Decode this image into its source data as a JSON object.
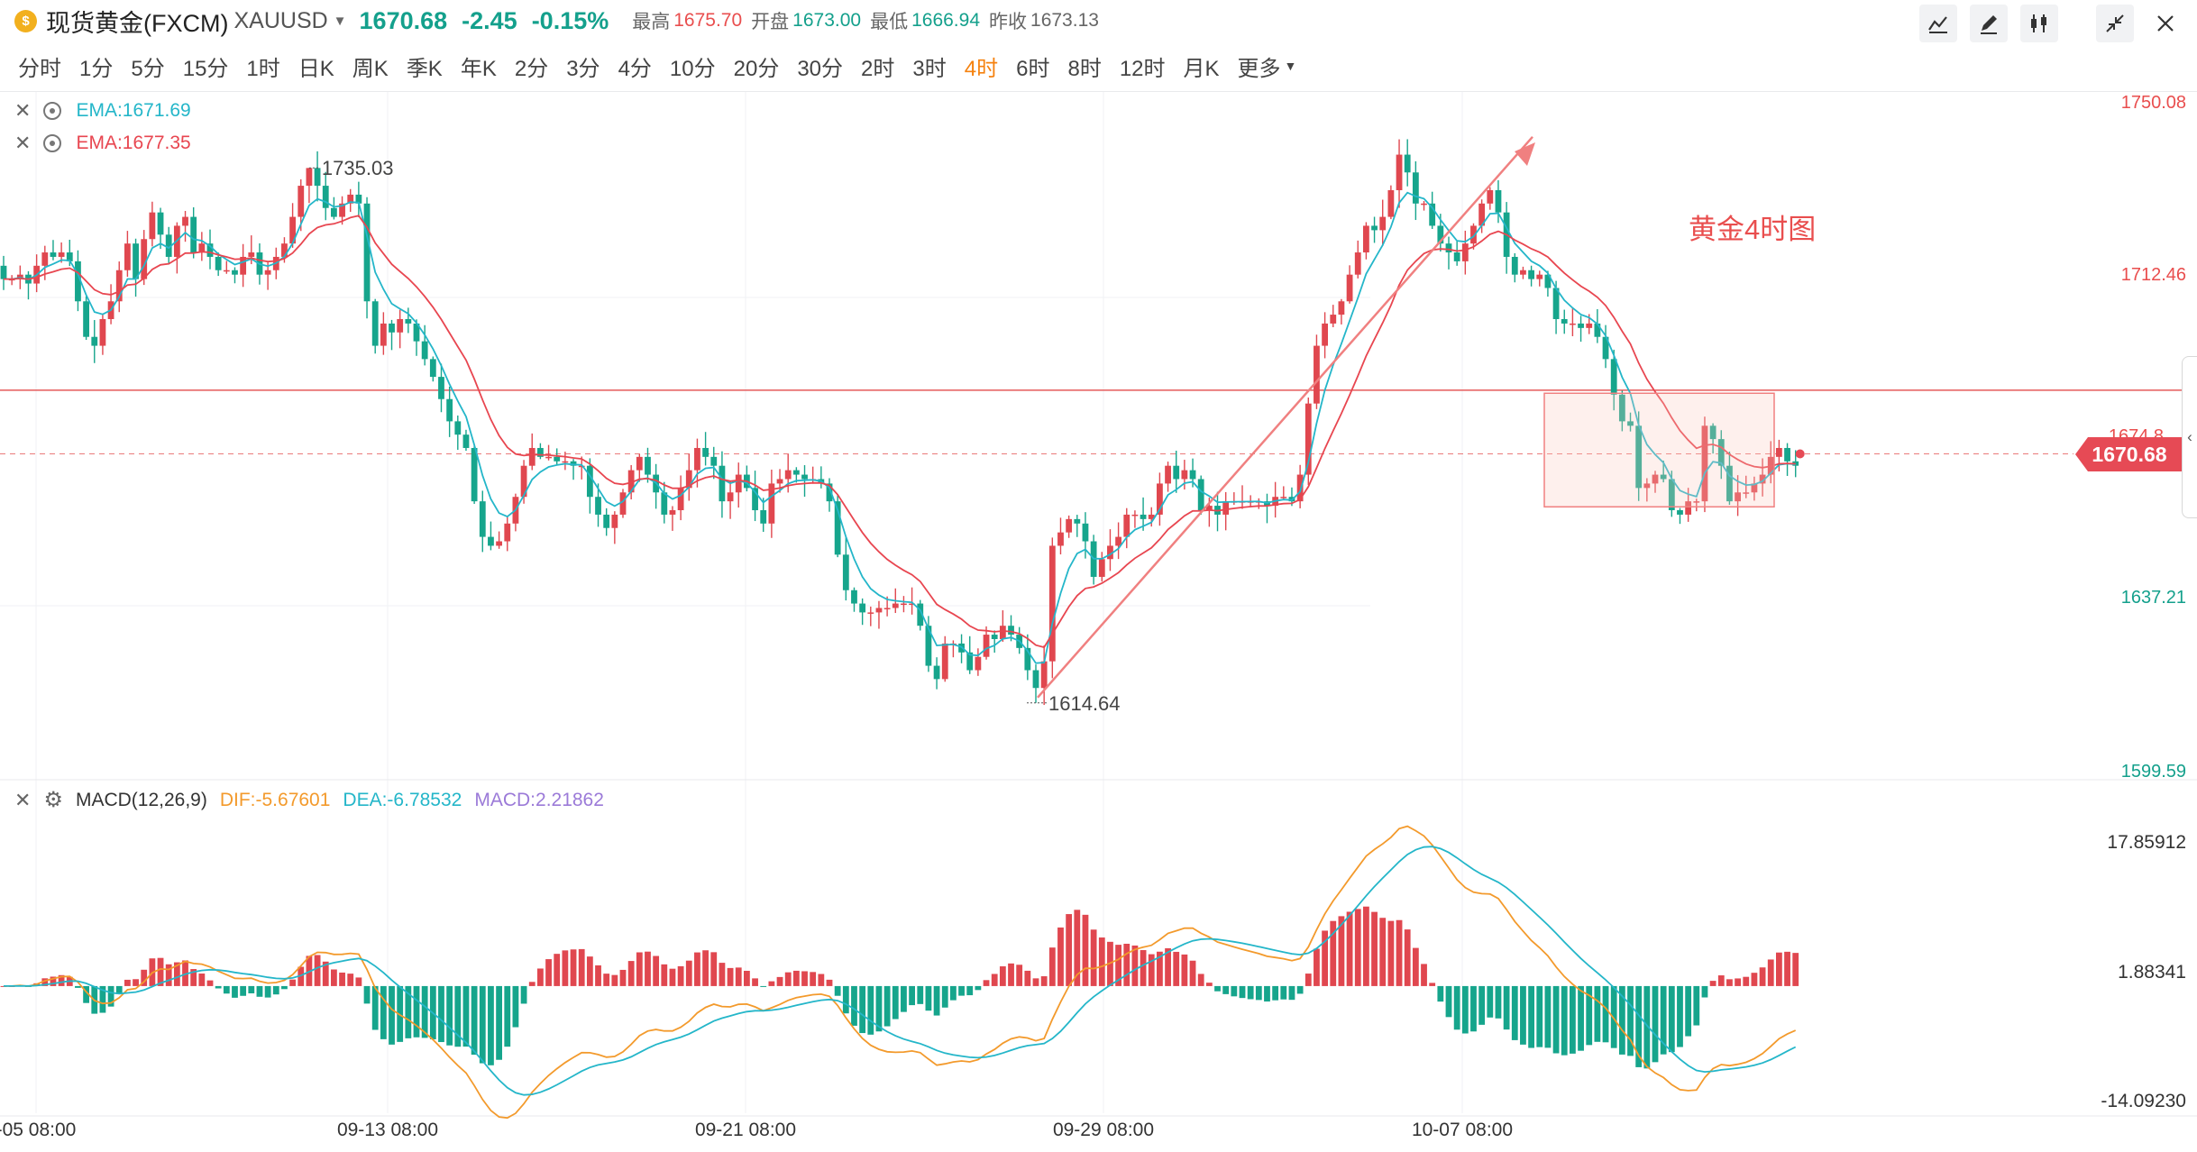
{
  "header": {
    "symbol_name": "现货黄金(FXCM)",
    "symbol_code": "XAUUSD",
    "price": "1670.68",
    "change": "-2.45",
    "change_pct": "-0.15%",
    "high_label": "最高",
    "high": "1675.70",
    "open_label": "开盘",
    "open": "1673.00",
    "low_label": "最低",
    "low": "1666.94",
    "prev_close_label": "昨收",
    "prev_close": "1673.13"
  },
  "toolbar": {
    "icons": [
      "line-type-icon",
      "draw-pen-icon",
      "candle-type-icon",
      "collapse-icon",
      "close-icon"
    ]
  },
  "periods": {
    "items": [
      "分时",
      "1分",
      "5分",
      "15分",
      "1时",
      "日K",
      "周K",
      "季K",
      "年K",
      "2分",
      "3分",
      "4分",
      "10分",
      "20分",
      "30分",
      "2时",
      "3时",
      "4时",
      "6时",
      "8时",
      "12时",
      "月K"
    ],
    "active": "4时",
    "more": "更多"
  },
  "indicators": {
    "ema1": "EMA:1671.69",
    "ema2": "EMA:1677.35",
    "macd_title": "MACD(12,26,9)",
    "dif": "DIF:-5.67601",
    "dea": "DEA:-6.78532",
    "macd": "MACD:2.21862"
  },
  "annotations": {
    "chart_title": "黄金4时图",
    "high_marker": "1735.03",
    "low_marker": "1614.64"
  },
  "price_axis": {
    "ticks": [
      "1750.08",
      "1712.46",
      "1637.21",
      "1599.59"
    ],
    "current": "1670.68",
    "hidden_tick": "1674.8"
  },
  "macd_axis": {
    "ticks": [
      "17.85912",
      "1.88341",
      "-14.09230"
    ]
  },
  "time_axis": {
    "labels": [
      "-05 08:00",
      "09-13 08:00",
      "09-21 08:00",
      "09-29 08:00",
      "10-07 08:00"
    ]
  },
  "colors": {
    "up": "#e0474f",
    "down": "#16a58c",
    "ema_fast": "#24b6c9",
    "ema_slow": "#e84650",
    "dif": "#f39a2c",
    "dea": "#24b6c9",
    "accent": "#f5820f"
  },
  "chart_data": {
    "type": "candlestick",
    "title": "黄金4时图",
    "symbol": "XAUUSD",
    "x_labels": [
      "-05 08:00",
      "09-13 08:00",
      "09-21 08:00",
      "09-29 08:00",
      "10-07 08:00"
    ],
    "ylim": [
      1599.59,
      1750.08
    ],
    "y_ticks": [
      1750.08,
      1712.46,
      1637.21,
      1599.59
    ],
    "current_price": 1670.68,
    "resistance_line": 1685,
    "period_high": 1735.03,
    "period_low": 1614.64,
    "close": [
      1710,
      1710,
      1711,
      1709,
      1713,
      1716,
      1715,
      1716,
      1714,
      1705,
      1697,
      1695,
      1701,
      1705,
      1712,
      1718,
      1710,
      1719,
      1725,
      1720,
      1715,
      1722,
      1724,
      1716,
      1718,
      1715,
      1712,
      1712,
      1711,
      1715,
      1716,
      1711,
      1712,
      1715,
      1718,
      1724,
      1731,
      1735,
      1731,
      1726,
      1724,
      1727,
      1729,
      1727,
      1705,
      1695,
      1700,
      1698,
      1701,
      1700,
      1696,
      1692,
      1688,
      1683,
      1678,
      1675,
      1672,
      1660,
      1652,
      1650,
      1651,
      1655,
      1661,
      1668,
      1672,
      1670,
      1670,
      1669,
      1669,
      1668,
      1668,
      1661,
      1657,
      1654,
      1657,
      1662,
      1667,
      1670,
      1666,
      1662,
      1657,
      1658,
      1663,
      1667,
      1672,
      1670,
      1668,
      1660,
      1662,
      1666,
      1663,
      1658,
      1655,
      1664,
      1665,
      1667,
      1666,
      1665,
      1665,
      1664,
      1660,
      1648,
      1640,
      1637,
      1635,
      1635,
      1636,
      1636,
      1637,
      1637,
      1637,
      1632,
      1623,
      1620,
      1628,
      1628,
      1626,
      1622,
      1625,
      1630,
      1629,
      1632,
      1630,
      1627,
      1622,
      1618,
      1624,
      1650,
      1653,
      1656,
      1655,
      1651,
      1643,
      1647,
      1650,
      1652,
      1657,
      1657,
      1656,
      1657,
      1664,
      1668,
      1665,
      1667,
      1665,
      1658,
      1659,
      1657,
      1660,
      1660,
      1660,
      1660,
      1660,
      1659,
      1661,
      1661,
      1660,
      1666,
      1682,
      1695,
      1700,
      1702,
      1705,
      1711,
      1716,
      1722,
      1721,
      1724,
      1730,
      1738,
      1734,
      1727,
      1727,
      1722,
      1718,
      1716,
      1714,
      1718,
      1722,
      1727,
      1730,
      1725,
      1715,
      1711,
      1712,
      1710,
      1711,
      1708,
      1701,
      1700,
      1700,
      1699,
      1700,
      1697,
      1692,
      1684,
      1678,
      1677,
      1663,
      1664,
      1666,
      1665,
      1658,
      1657,
      1660,
      1660,
      1677,
      1674,
      1668,
      1660,
      1662,
      1662,
      1664,
      1666,
      1670,
      1672,
      1669,
      1668
    ]
  }
}
